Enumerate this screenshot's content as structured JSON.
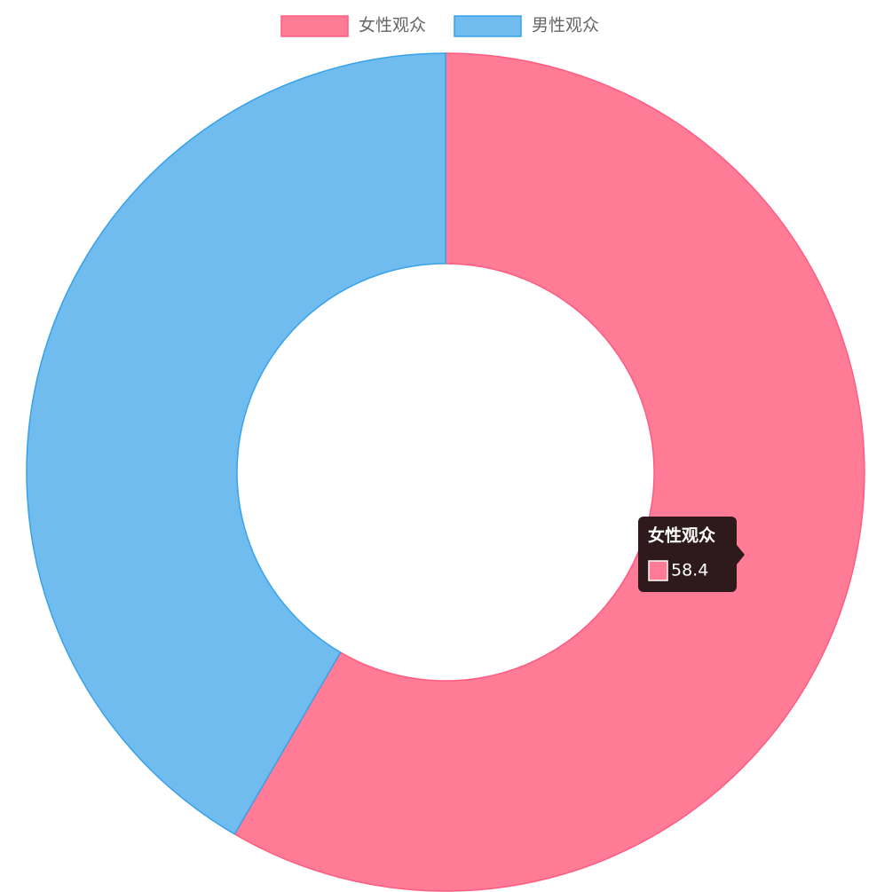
{
  "chart_data": {
    "type": "doughnut",
    "categories": [
      "女性观众",
      "男性观众"
    ],
    "values": [
      58.4,
      41.6
    ],
    "colors": [
      "#ff7b96",
      "#71bcef"
    ],
    "border_colors": [
      "#ff5c82",
      "#36a2eb"
    ],
    "legend": "top"
  }
}
